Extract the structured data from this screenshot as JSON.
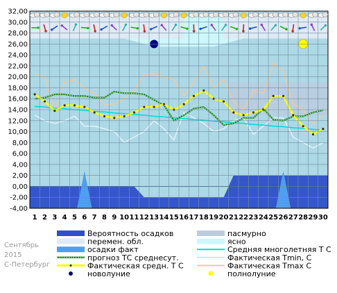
{
  "chart_data": {
    "type": "line",
    "caption": [
      "Сентябрь",
      "2015",
      "С-Петербург"
    ],
    "x": [
      1,
      2,
      3,
      4,
      5,
      6,
      7,
      8,
      9,
      10,
      11,
      12,
      13,
      14,
      15,
      16,
      17,
      18,
      19,
      20,
      21,
      22,
      23,
      24,
      25,
      26,
      27,
      28,
      29,
      30
    ],
    "ylim": [
      -4,
      32
    ],
    "yticks": [
      "-4,00",
      "-2,00",
      "0,00",
      "2,00",
      "4,00",
      "6,00",
      "8,00",
      "10,00",
      "12,00",
      "14,00",
      "16,00",
      "18,00",
      "20,00",
      "22,00",
      "24,00",
      "26,00",
      "28,00",
      "30,00",
      "32,00"
    ],
    "grid": true,
    "series": [
      {
        "name": "Фактическая средн. Т С",
        "color": "#ffff00",
        "values": [
          16.8,
          15.5,
          13.8,
          14.8,
          14.8,
          14.5,
          13.5,
          12.8,
          12.5,
          12.8,
          13.5,
          14.5,
          14.5,
          15.0,
          14.0,
          15.0,
          16.5,
          17.5,
          16.0,
          15.5,
          13.5,
          13.0,
          13.5,
          14.0,
          16.5,
          16.5,
          13.0,
          11.0,
          9.5,
          10.5
        ]
      },
      {
        "name": "прогноз ТС среднесут.",
        "color": "#228b22",
        "values": [
          16.0,
          16.2,
          16.8,
          16.8,
          16.5,
          16.5,
          16.2,
          16.2,
          17.3,
          17.0,
          17.0,
          16.8,
          15.8,
          14.8,
          12.0,
          13.0,
          14.2,
          14.5,
          13.0,
          11.2,
          11.5,
          12.5,
          12.5,
          14.2,
          12.2,
          12.0,
          12.8,
          12.8,
          13.5,
          13.9
        ]
      },
      {
        "name": "Средняя многолетняя Т С",
        "color": "#00dede",
        "values": [
          14.6,
          14.5,
          14.3,
          14.2,
          14.0,
          13.9,
          13.7,
          13.6,
          13.4,
          13.3,
          13.1,
          13.0,
          12.8,
          12.7,
          12.5,
          12.4,
          12.2,
          12.1,
          11.9,
          11.8,
          11.6,
          11.5,
          11.3,
          11.2,
          11.0,
          10.9,
          10.7,
          10.6,
          10.4,
          10.3
        ]
      },
      {
        "name": "Фактическая Tmin, С",
        "color": "#e6f4ff",
        "values": [
          13.0,
          12.0,
          11.5,
          12.0,
          12.8,
          11.0,
          11.0,
          10.5,
          10.0,
          8.0,
          9.0,
          10.0,
          12.0,
          10.5,
          8.5,
          13.5,
          12.5,
          11.5,
          10.0,
          10.5,
          12.0,
          12.5,
          9.5,
          11.0,
          12.5,
          12.5,
          9.0,
          8.0,
          7.0,
          8.0
        ]
      },
      {
        "name": "Фактическая Tmax C",
        "color": "#f5c899",
        "values": [
          20.5,
          20.0,
          14.0,
          19.0,
          19.5,
          18.0,
          17.0,
          15.0,
          15.0,
          16.0,
          17.5,
          20.5,
          20.5,
          20.0,
          19.5,
          16.5,
          19.0,
          22.0,
          18.0,
          19.5,
          15.5,
          14.0,
          17.5,
          17.0,
          22.5,
          21.0,
          15.0,
          14.0,
          11.5,
          13.0
        ]
      }
    ],
    "precip_prob": [
      0,
      0,
      0,
      0,
      0,
      0,
      0,
      0,
      0,
      0,
      0,
      -2,
      -2,
      -2,
      -2,
      -2,
      -2,
      -2,
      -2,
      -2,
      2,
      2,
      2,
      2,
      2,
      2,
      2,
      2,
      2,
      2
    ],
    "precip_fact": [
      0,
      0,
      0,
      0,
      0,
      2.8,
      0,
      0,
      0,
      0,
      0,
      0,
      0,
      0,
      0,
      0,
      0,
      0,
      0,
      0,
      0,
      0,
      0,
      0,
      0,
      2.8,
      0,
      0,
      0,
      0
    ],
    "new_moon_day": 13,
    "full_moon_day": 28,
    "legend": [
      {
        "key": "prob",
        "label": "Вероятность осадков"
      },
      {
        "key": "overcast",
        "label": "пасмурно"
      },
      {
        "key": "partly",
        "label": "перемен. обл."
      },
      {
        "key": "clear",
        "label": "ясно"
      },
      {
        "key": "fact",
        "label": "осадки факт"
      },
      {
        "key": "normal",
        "label": "Средняя многолетняя Т С"
      },
      {
        "key": "forecast",
        "label": "прогноз ТС среднесут."
      },
      {
        "key": "tmin",
        "label": "Фактическая Tmin, С"
      },
      {
        "key": "mean",
        "label": "Фактическая средн. Т С"
      },
      {
        "key": "tmax",
        "label": "Фактическая Tmax C"
      },
      {
        "key": "newmoon",
        "label": "новолуние"
      },
      {
        "key": "fullmoon",
        "label": "полнолуние"
      }
    ],
    "colors": {
      "plot_bg": "#add8e6",
      "overcast_band": "#bcccdf",
      "partly_band": "#dfeaf4",
      "clear_band": "#cdf7fb",
      "precip_prob": "#2e4fc9",
      "precip_fact": "#4f9ff0",
      "new_moon": "#000080",
      "full_moon": "#ffff00"
    }
  }
}
